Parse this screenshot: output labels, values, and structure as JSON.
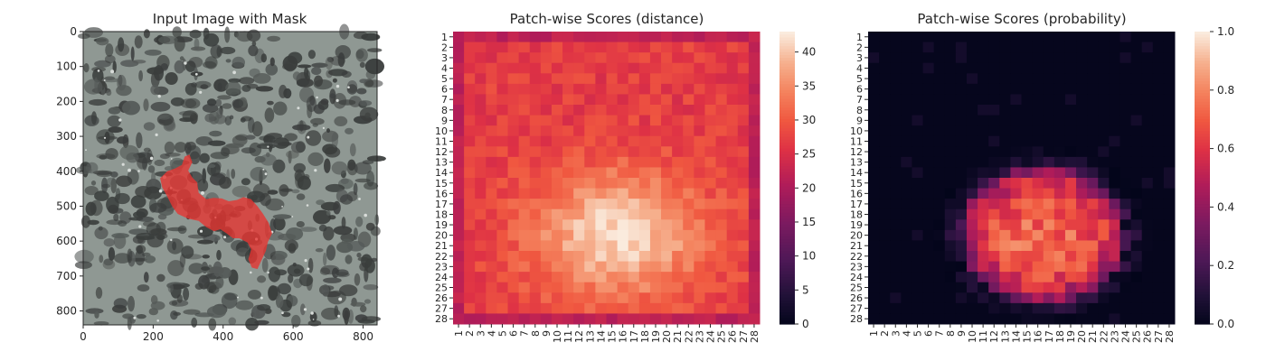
{
  "chart_data": [
    {
      "type": "image",
      "title": "Input Image with Mask",
      "xlim": [
        0,
        840
      ],
      "ylim": [
        840,
        0
      ],
      "xticks": [
        0,
        200,
        400,
        600,
        800
      ],
      "yticks": [
        0,
        100,
        200,
        300,
        400,
        500,
        600,
        700,
        800
      ],
      "mask_color": "#e8332f",
      "background_color": "#8f9893",
      "speckle_color": "#3a3d3c",
      "mask_path": [
        [
          220,
          420
        ],
        [
          240,
          400
        ],
        [
          262,
          392
        ],
        [
          282,
          382
        ],
        [
          290,
          358
        ],
        [
          304,
          352
        ],
        [
          312,
          374
        ],
        [
          300,
          398
        ],
        [
          312,
          418
        ],
        [
          326,
          432
        ],
        [
          330,
          462
        ],
        [
          352,
          480
        ],
        [
          372,
          476
        ],
        [
          396,
          478
        ],
        [
          416,
          486
        ],
        [
          440,
          482
        ],
        [
          458,
          474
        ],
        [
          480,
          480
        ],
        [
          498,
          500
        ],
        [
          514,
          522
        ],
        [
          530,
          548
        ],
        [
          540,
          578
        ],
        [
          528,
          602
        ],
        [
          522,
          628
        ],
        [
          510,
          654
        ],
        [
          498,
          680
        ],
        [
          482,
          676
        ],
        [
          472,
          652
        ],
        [
          480,
          624
        ],
        [
          470,
          604
        ],
        [
          446,
          592
        ],
        [
          428,
          592
        ],
        [
          410,
          578
        ],
        [
          392,
          566
        ],
        [
          374,
          572
        ],
        [
          352,
          560
        ],
        [
          330,
          542
        ],
        [
          300,
          536
        ],
        [
          270,
          522
        ],
        [
          254,
          500
        ],
        [
          240,
          472
        ],
        [
          226,
          446
        ]
      ]
    },
    {
      "type": "heatmap",
      "title": "Patch-wise Scores (distance)",
      "rows": 28,
      "cols": 28,
      "xticklabels": [
        "1",
        "2",
        "3",
        "4",
        "5",
        "6",
        "7",
        "8",
        "9",
        "10",
        "11",
        "12",
        "13",
        "14",
        "15",
        "16",
        "17",
        "18",
        "19",
        "20",
        "21",
        "22",
        "23",
        "24",
        "25",
        "26",
        "27",
        "28"
      ],
      "yticklabels": [
        "1",
        "2",
        "3",
        "4",
        "5",
        "6",
        "7",
        "8",
        "9",
        "10",
        "11",
        "12",
        "13",
        "14",
        "15",
        "16",
        "17",
        "18",
        "19",
        "20",
        "21",
        "22",
        "23",
        "24",
        "25",
        "26",
        "27",
        "28"
      ],
      "colorbar": {
        "min": 0,
        "max": 43,
        "ticks": [
          0,
          5,
          10,
          15,
          20,
          25,
          30,
          35,
          40
        ]
      },
      "value_model": {
        "base": 27,
        "hotspot_center": [
          14.5,
          19
        ],
        "hotspot_sigma": [
          5.5,
          4.2
        ],
        "hotspot_peak": 15,
        "edge_value": 22,
        "noise": 2.5,
        "seed": 7
      }
    },
    {
      "type": "heatmap",
      "title": "Patch-wise Scores (probability)",
      "rows": 28,
      "cols": 28,
      "xticklabels": [
        "1",
        "2",
        "3",
        "4",
        "5",
        "6",
        "7",
        "8",
        "9",
        "10",
        "11",
        "12",
        "13",
        "14",
        "15",
        "16",
        "17",
        "18",
        "19",
        "20",
        "21",
        "22",
        "23",
        "24",
        "25",
        "26",
        "27",
        "28"
      ],
      "yticklabels": [
        "1",
        "2",
        "3",
        "4",
        "5",
        "6",
        "7",
        "8",
        "9",
        "10",
        "11",
        "12",
        "13",
        "14",
        "15",
        "16",
        "17",
        "18",
        "19",
        "20",
        "21",
        "22",
        "23",
        "24",
        "25",
        "26",
        "27",
        "28"
      ],
      "colorbar": {
        "min": 0.0,
        "max": 1.0,
        "ticks": [
          "0.0",
          "0.2",
          "0.4",
          "0.6",
          "0.8",
          "1.0"
        ]
      },
      "value_model": {
        "blob_center": [
          15.5,
          19
        ],
        "blob_radius": [
          7.5,
          6.5
        ],
        "blob_peak": 0.72,
        "noise": 0.12,
        "seed": 11
      }
    }
  ]
}
